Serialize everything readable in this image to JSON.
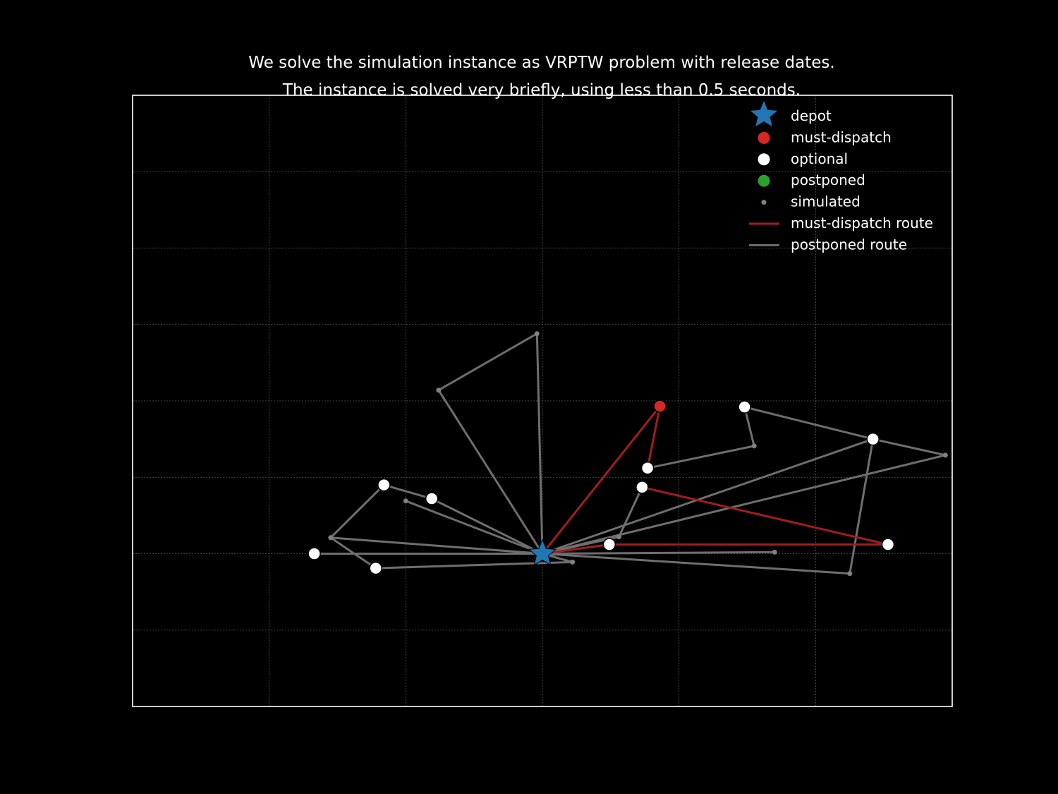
{
  "chart_data": {
    "type": "scatter",
    "title": [
      "We solve the simulation instance as VRPTW problem with release dates.",
      "The instance is solved very briefly, using less than 0.5 seconds."
    ],
    "xlabel": "",
    "ylabel": "",
    "xlim": [
      0,
      6
    ],
    "ylim": [
      0,
      8
    ],
    "grid": true,
    "legend_position": "top-right",
    "colors": {
      "background": "#000000",
      "depot": "#1f77b4",
      "must_dispatch": "#d62728",
      "optional": "#ffffff",
      "postponed": "#2ca02c",
      "simulated": "#808080",
      "must_dispatch_route": "#a11d21",
      "postponed_route": "#6e6e6e"
    },
    "legend": [
      {
        "label": "depot",
        "marker": "star"
      },
      {
        "label": "must-dispatch",
        "marker": "circle-red"
      },
      {
        "label": "optional",
        "marker": "circle-white"
      },
      {
        "label": "postponed",
        "marker": "circle-green"
      },
      {
        "label": "simulated",
        "marker": "dot-gray"
      },
      {
        "label": "must-dispatch route",
        "marker": "line-red"
      },
      {
        "label": "postponed route",
        "marker": "line-gray"
      }
    ],
    "depot": {
      "x": 3.0,
      "y": 2.0
    },
    "nodes": {
      "A": {
        "x": 3.86,
        "y": 3.93,
        "kind": "must-dispatch"
      },
      "B": {
        "x": 3.77,
        "y": 3.12,
        "kind": "optional"
      },
      "C": {
        "x": 3.73,
        "y": 2.87,
        "kind": "optional"
      },
      "D": {
        "x": 5.53,
        "y": 2.12,
        "kind": "optional"
      },
      "E": {
        "x": 3.49,
        "y": 2.12,
        "kind": "optional"
      },
      "F": {
        "x": 4.48,
        "y": 3.92,
        "kind": "optional"
      },
      "G": {
        "x": 5.42,
        "y": 3.5,
        "kind": "optional"
      },
      "H": {
        "x": 1.84,
        "y": 2.9,
        "kind": "optional"
      },
      "I": {
        "x": 2.19,
        "y": 2.72,
        "kind": "optional"
      },
      "J": {
        "x": 1.33,
        "y": 2.0,
        "kind": "optional"
      },
      "K": {
        "x": 1.78,
        "y": 1.81,
        "kind": "optional"
      },
      "s1": {
        "x": 2.96,
        "y": 4.88,
        "kind": "simulated"
      },
      "s2": {
        "x": 2.24,
        "y": 4.14,
        "kind": "simulated"
      },
      "s3": {
        "x": 4.55,
        "y": 3.41,
        "kind": "simulated"
      },
      "s4": {
        "x": 5.95,
        "y": 3.29,
        "kind": "simulated"
      },
      "s5": {
        "x": 5.25,
        "y": 1.74,
        "kind": "simulated"
      },
      "s6": {
        "x": 3.56,
        "y": 2.22,
        "kind": "simulated"
      },
      "s7": {
        "x": 3.22,
        "y": 1.89,
        "kind": "simulated"
      },
      "s8": {
        "x": 4.7,
        "y": 2.02,
        "kind": "simulated"
      },
      "s9": {
        "x": 2.0,
        "y": 2.69,
        "kind": "simulated"
      },
      "s10": {
        "x": 1.45,
        "y": 2.21,
        "kind": "simulated"
      }
    },
    "routes": [
      {
        "kind": "must-dispatch",
        "path": [
          "depot",
          "A",
          "B"
        ]
      },
      {
        "kind": "must-dispatch",
        "path": [
          "C",
          "D",
          "E",
          "depot"
        ]
      },
      {
        "kind": "postponed",
        "path": [
          "depot",
          "s1",
          "s2",
          "depot"
        ]
      },
      {
        "kind": "postponed",
        "path": [
          "B",
          "s3"
        ]
      },
      {
        "kind": "postponed",
        "path": [
          "depot",
          "G",
          "s5",
          "depot"
        ]
      },
      {
        "kind": "postponed",
        "path": [
          "depot",
          "s6",
          "C"
        ]
      },
      {
        "kind": "postponed",
        "path": [
          "depot",
          "s8"
        ]
      },
      {
        "kind": "postponed",
        "path": [
          "depot",
          "s4",
          "G",
          "F",
          "s3"
        ]
      },
      {
        "kind": "postponed",
        "path": [
          "depot",
          "I",
          "H",
          "s10",
          "depot"
        ]
      },
      {
        "kind": "postponed",
        "path": [
          "depot",
          "s9"
        ]
      },
      {
        "kind": "postponed",
        "path": [
          "s10",
          "K",
          "s7",
          "depot"
        ]
      },
      {
        "kind": "postponed",
        "path": [
          "depot",
          "J"
        ]
      }
    ]
  }
}
